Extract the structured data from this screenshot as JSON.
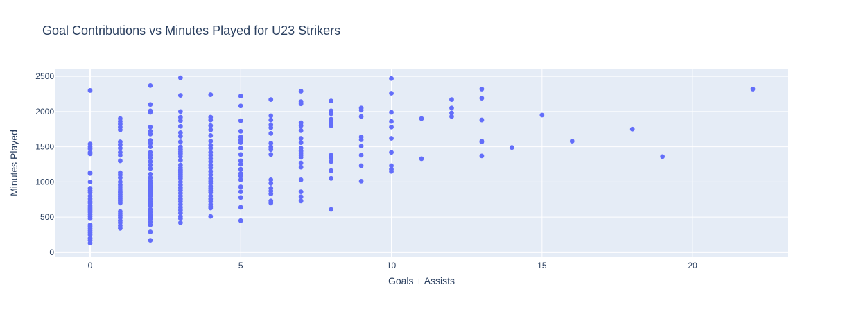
{
  "chart_data": {
    "type": "scatter",
    "title": "Goal Contributions vs Minutes Played for U23 Strikers",
    "xlabel": "Goals + Assists",
    "ylabel": "Minutes Played",
    "xlim": [
      -1.15,
      23.15
    ],
    "ylim": [
      -60,
      2600
    ],
    "xticks": [
      0,
      5,
      10,
      15,
      20
    ],
    "yticks": [
      0,
      500,
      1000,
      1500,
      2000,
      2500
    ],
    "grid": true,
    "legend": "none",
    "marker_color": "#636efa",
    "plot_bgcolor": "#e5ecf6",
    "series": [
      {
        "points": [
          [
            0,
            2300
          ],
          [
            0,
            1540
          ],
          [
            0,
            1500
          ],
          [
            0,
            1470
          ],
          [
            0,
            1420
          ],
          [
            0,
            1400
          ],
          [
            0,
            1130
          ],
          [
            0,
            1120
          ],
          [
            0,
            1000
          ],
          [
            0,
            910
          ],
          [
            0,
            880
          ],
          [
            0,
            850
          ],
          [
            0,
            800
          ],
          [
            0,
            760
          ],
          [
            0,
            720
          ],
          [
            0,
            700
          ],
          [
            0,
            660
          ],
          [
            0,
            630
          ],
          [
            0,
            610
          ],
          [
            0,
            590
          ],
          [
            0,
            570
          ],
          [
            0,
            540
          ],
          [
            0,
            510
          ],
          [
            0,
            480
          ],
          [
            0,
            390
          ],
          [
            0,
            370
          ],
          [
            0,
            340
          ],
          [
            0,
            310
          ],
          [
            0,
            280
          ],
          [
            0,
            250
          ],
          [
            0,
            200
          ],
          [
            0,
            170
          ],
          [
            0,
            130
          ],
          [
            1,
            1900
          ],
          [
            1,
            1860
          ],
          [
            1,
            1820
          ],
          [
            1,
            1780
          ],
          [
            1,
            1740
          ],
          [
            1,
            1570
          ],
          [
            1,
            1530
          ],
          [
            1,
            1480
          ],
          [
            1,
            1420
          ],
          [
            1,
            1380
          ],
          [
            1,
            1300
          ],
          [
            1,
            1130
          ],
          [
            1,
            1100
          ],
          [
            1,
            1060
          ],
          [
            1,
            1000
          ],
          [
            1,
            960
          ],
          [
            1,
            930
          ],
          [
            1,
            900
          ],
          [
            1,
            870
          ],
          [
            1,
            850
          ],
          [
            1,
            820
          ],
          [
            1,
            790
          ],
          [
            1,
            760
          ],
          [
            1,
            730
          ],
          [
            1,
            700
          ],
          [
            1,
            580
          ],
          [
            1,
            550
          ],
          [
            1,
            520
          ],
          [
            1,
            490
          ],
          [
            1,
            450
          ],
          [
            1,
            420
          ],
          [
            1,
            380
          ],
          [
            1,
            340
          ],
          [
            2,
            2370
          ],
          [
            2,
            2100
          ],
          [
            2,
            2010
          ],
          [
            2,
            1990
          ],
          [
            2,
            1780
          ],
          [
            2,
            1720
          ],
          [
            2,
            1680
          ],
          [
            2,
            1590
          ],
          [
            2,
            1550
          ],
          [
            2,
            1500
          ],
          [
            2,
            1420
          ],
          [
            2,
            1380
          ],
          [
            2,
            1340
          ],
          [
            2,
            1290
          ],
          [
            2,
            1240
          ],
          [
            2,
            1190
          ],
          [
            2,
            1110
          ],
          [
            2,
            1060
          ],
          [
            2,
            1020
          ],
          [
            2,
            980
          ],
          [
            2,
            950
          ],
          [
            2,
            920
          ],
          [
            2,
            890
          ],
          [
            2,
            860
          ],
          [
            2,
            830
          ],
          [
            2,
            800
          ],
          [
            2,
            760
          ],
          [
            2,
            720
          ],
          [
            2,
            690
          ],
          [
            2,
            660
          ],
          [
            2,
            610
          ],
          [
            2,
            570
          ],
          [
            2,
            530
          ],
          [
            2,
            500
          ],
          [
            2,
            470
          ],
          [
            2,
            430
          ],
          [
            2,
            390
          ],
          [
            2,
            290
          ],
          [
            2,
            170
          ],
          [
            3,
            2480
          ],
          [
            3,
            2230
          ],
          [
            3,
            2000
          ],
          [
            3,
            1920
          ],
          [
            3,
            1870
          ],
          [
            3,
            1790
          ],
          [
            3,
            1700
          ],
          [
            3,
            1650
          ],
          [
            3,
            1570
          ],
          [
            3,
            1500
          ],
          [
            3,
            1460
          ],
          [
            3,
            1430
          ],
          [
            3,
            1400
          ],
          [
            3,
            1360
          ],
          [
            3,
            1310
          ],
          [
            3,
            1240
          ],
          [
            3,
            1200
          ],
          [
            3,
            1170
          ],
          [
            3,
            1140
          ],
          [
            3,
            1110
          ],
          [
            3,
            1080
          ],
          [
            3,
            1050
          ],
          [
            3,
            1000
          ],
          [
            3,
            960
          ],
          [
            3,
            920
          ],
          [
            3,
            880
          ],
          [
            3,
            840
          ],
          [
            3,
            800
          ],
          [
            3,
            760
          ],
          [
            3,
            720
          ],
          [
            3,
            680
          ],
          [
            3,
            640
          ],
          [
            3,
            600
          ],
          [
            3,
            560
          ],
          [
            3,
            510
          ],
          [
            3,
            480
          ],
          [
            3,
            420
          ],
          [
            4,
            2240
          ],
          [
            4,
            1920
          ],
          [
            4,
            1880
          ],
          [
            4,
            1800
          ],
          [
            4,
            1740
          ],
          [
            4,
            1660
          ],
          [
            4,
            1580
          ],
          [
            4,
            1520
          ],
          [
            4,
            1480
          ],
          [
            4,
            1420
          ],
          [
            4,
            1380
          ],
          [
            4,
            1330
          ],
          [
            4,
            1290
          ],
          [
            4,
            1240
          ],
          [
            4,
            1200
          ],
          [
            4,
            1150
          ],
          [
            4,
            1100
          ],
          [
            4,
            1050
          ],
          [
            4,
            1010
          ],
          [
            4,
            980
          ],
          [
            4,
            940
          ],
          [
            4,
            910
          ],
          [
            4,
            880
          ],
          [
            4,
            850
          ],
          [
            4,
            800
          ],
          [
            4,
            760
          ],
          [
            4,
            720
          ],
          [
            4,
            680
          ],
          [
            4,
            650
          ],
          [
            4,
            630
          ],
          [
            4,
            510
          ],
          [
            5,
            2220
          ],
          [
            5,
            2080
          ],
          [
            5,
            1870
          ],
          [
            5,
            1720
          ],
          [
            5,
            1640
          ],
          [
            5,
            1600
          ],
          [
            5,
            1560
          ],
          [
            5,
            1480
          ],
          [
            5,
            1390
          ],
          [
            5,
            1300
          ],
          [
            5,
            1250
          ],
          [
            5,
            1180
          ],
          [
            5,
            1120
          ],
          [
            5,
            1080
          ],
          [
            5,
            1030
          ],
          [
            5,
            930
          ],
          [
            5,
            860
          ],
          [
            5,
            780
          ],
          [
            5,
            640
          ],
          [
            5,
            450
          ],
          [
            6,
            2170
          ],
          [
            6,
            1940
          ],
          [
            6,
            1880
          ],
          [
            6,
            1810
          ],
          [
            6,
            1770
          ],
          [
            6,
            1690
          ],
          [
            6,
            1550
          ],
          [
            6,
            1500
          ],
          [
            6,
            1460
          ],
          [
            6,
            1390
          ],
          [
            6,
            1030
          ],
          [
            6,
            980
          ],
          [
            6,
            910
          ],
          [
            6,
            870
          ],
          [
            6,
            830
          ],
          [
            6,
            730
          ],
          [
            6,
            700
          ],
          [
            7,
            2290
          ],
          [
            7,
            2140
          ],
          [
            7,
            2110
          ],
          [
            7,
            1840
          ],
          [
            7,
            1800
          ],
          [
            7,
            1730
          ],
          [
            7,
            1620
          ],
          [
            7,
            1560
          ],
          [
            7,
            1480
          ],
          [
            7,
            1440
          ],
          [
            7,
            1410
          ],
          [
            7,
            1380
          ],
          [
            7,
            1350
          ],
          [
            7,
            1270
          ],
          [
            7,
            1210
          ],
          [
            7,
            1030
          ],
          [
            7,
            860
          ],
          [
            7,
            790
          ],
          [
            7,
            730
          ],
          [
            8,
            2150
          ],
          [
            8,
            2010
          ],
          [
            8,
            1970
          ],
          [
            8,
            1890
          ],
          [
            8,
            1840
          ],
          [
            8,
            1800
          ],
          [
            8,
            1380
          ],
          [
            8,
            1340
          ],
          [
            8,
            1290
          ],
          [
            8,
            1160
          ],
          [
            8,
            1050
          ],
          [
            8,
            610
          ],
          [
            9,
            2050
          ],
          [
            9,
            2020
          ],
          [
            9,
            1930
          ],
          [
            9,
            1640
          ],
          [
            9,
            1600
          ],
          [
            9,
            1510
          ],
          [
            9,
            1380
          ],
          [
            9,
            1230
          ],
          [
            9,
            1010
          ],
          [
            10,
            2470
          ],
          [
            10,
            2260
          ],
          [
            10,
            1990
          ],
          [
            10,
            1860
          ],
          [
            10,
            1780
          ],
          [
            10,
            1620
          ],
          [
            10,
            1420
          ],
          [
            10,
            1230
          ],
          [
            10,
            1180
          ],
          [
            10,
            1150
          ],
          [
            11,
            1900
          ],
          [
            11,
            1330
          ],
          [
            12,
            2170
          ],
          [
            12,
            2050
          ],
          [
            12,
            1980
          ],
          [
            12,
            1930
          ],
          [
            13,
            2320
          ],
          [
            13,
            2190
          ],
          [
            13,
            1880
          ],
          [
            13,
            1580
          ],
          [
            13,
            1570
          ],
          [
            13,
            1370
          ],
          [
            14,
            1490
          ],
          [
            15,
            1950
          ],
          [
            16,
            1580
          ],
          [
            18,
            1750
          ],
          [
            19,
            1360
          ],
          [
            22,
            2320
          ]
        ]
      }
    ]
  }
}
